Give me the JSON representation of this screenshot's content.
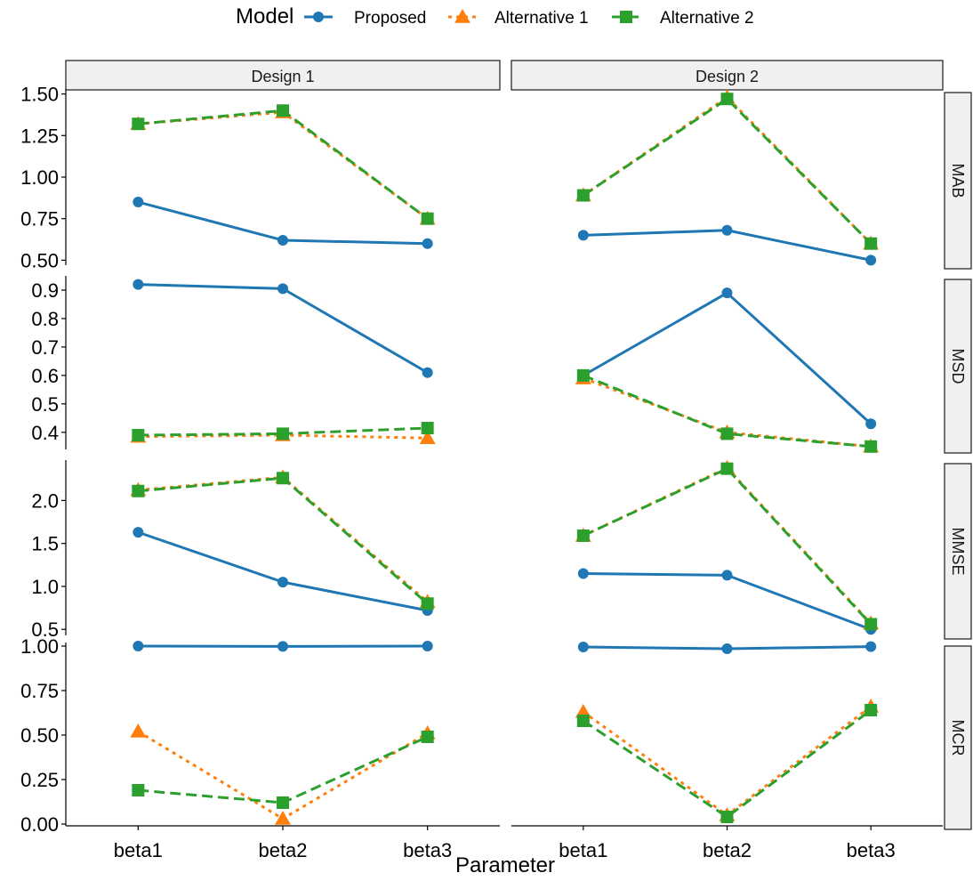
{
  "chart_data": {
    "type": "line",
    "xlabel": "Parameter",
    "legend": {
      "title": "Model",
      "placement": "top"
    },
    "categories": [
      "beta1",
      "beta2",
      "beta3"
    ],
    "columns": [
      "Design 1",
      "Design 2"
    ],
    "rows": [
      {
        "label": "MAB",
        "ylim": [
          0.47,
          1.53
        ],
        "ticks": [
          0.5,
          0.75,
          1.0,
          1.25,
          1.5
        ],
        "tick_labels": [
          "0.50",
          "0.75",
          "1.00",
          "1.25",
          "1.50"
        ]
      },
      {
        "label": "MSD",
        "ylim": [
          0.34,
          0.95
        ],
        "ticks": [
          0.4,
          0.5,
          0.6,
          0.7,
          0.8,
          0.9
        ],
        "tick_labels": [
          "0.4",
          "0.5",
          "0.6",
          "0.7",
          "0.8",
          "0.9"
        ]
      },
      {
        "label": "MMSE",
        "ylim": [
          0.43,
          2.47
        ],
        "ticks": [
          0.5,
          1.0,
          1.5,
          2.0
        ],
        "tick_labels": [
          "0.5",
          "1.0",
          "1.5",
          "2.0"
        ]
      },
      {
        "label": "MCR",
        "ylim": [
          -0.01,
          1.02
        ],
        "ticks": [
          0.0,
          0.25,
          0.5,
          0.75,
          1.0
        ],
        "tick_labels": [
          "0.00",
          "0.25",
          "0.50",
          "0.75",
          "1.00"
        ]
      }
    ],
    "series": [
      {
        "name": "Proposed",
        "color": "#1f77b4",
        "marker": "circle",
        "dash": "solid",
        "values": {
          "Design 1": {
            "MAB": [
              0.85,
              0.62,
              0.6
            ],
            "MSD": [
              0.92,
              0.905,
              0.61
            ],
            "MMSE": [
              1.63,
              1.05,
              0.72
            ],
            "MCR": [
              1.0,
              0.998,
              1.0
            ]
          },
          "Design 2": {
            "MAB": [
              0.65,
              0.68,
              0.5
            ],
            "MSD": [
              0.6,
              0.89,
              0.43
            ],
            "MMSE": [
              1.15,
              1.13,
              0.5
            ],
            "MCR": [
              0.995,
              0.985,
              0.997
            ]
          }
        }
      },
      {
        "name": "Alternative 1",
        "color": "#ff7f0e",
        "marker": "triangle",
        "dash": "dotted",
        "values": {
          "Design 1": {
            "MAB": [
              1.32,
              1.39,
              0.75
            ],
            "MSD": [
              0.385,
              0.39,
              0.38
            ],
            "MMSE": [
              2.12,
              2.27,
              0.82
            ],
            "MCR": [
              0.52,
              0.03,
              0.51
            ]
          },
          "Design 2": {
            "MAB": [
              0.89,
              1.48,
              0.6
            ],
            "MSD": [
              0.59,
              0.4,
              0.35
            ],
            "MMSE": [
              1.59,
              2.38,
              0.57
            ],
            "MCR": [
              0.63,
              0.05,
              0.66
            ]
          }
        }
      },
      {
        "name": "Alternative 2",
        "color": "#2ca02c",
        "marker": "square",
        "dash": "dashed",
        "values": {
          "Design 1": {
            "MAB": [
              1.32,
              1.4,
              0.75
            ],
            "MSD": [
              0.39,
              0.395,
              0.415
            ],
            "MMSE": [
              2.11,
              2.26,
              0.8
            ],
            "MCR": [
              0.19,
              0.12,
              0.49
            ]
          },
          "Design 2": {
            "MAB": [
              0.89,
              1.47,
              0.6
            ],
            "MSD": [
              0.6,
              0.395,
              0.35
            ],
            "MMSE": [
              1.59,
              2.37,
              0.56
            ],
            "MCR": [
              0.58,
              0.04,
              0.64
            ]
          }
        }
      }
    ]
  }
}
